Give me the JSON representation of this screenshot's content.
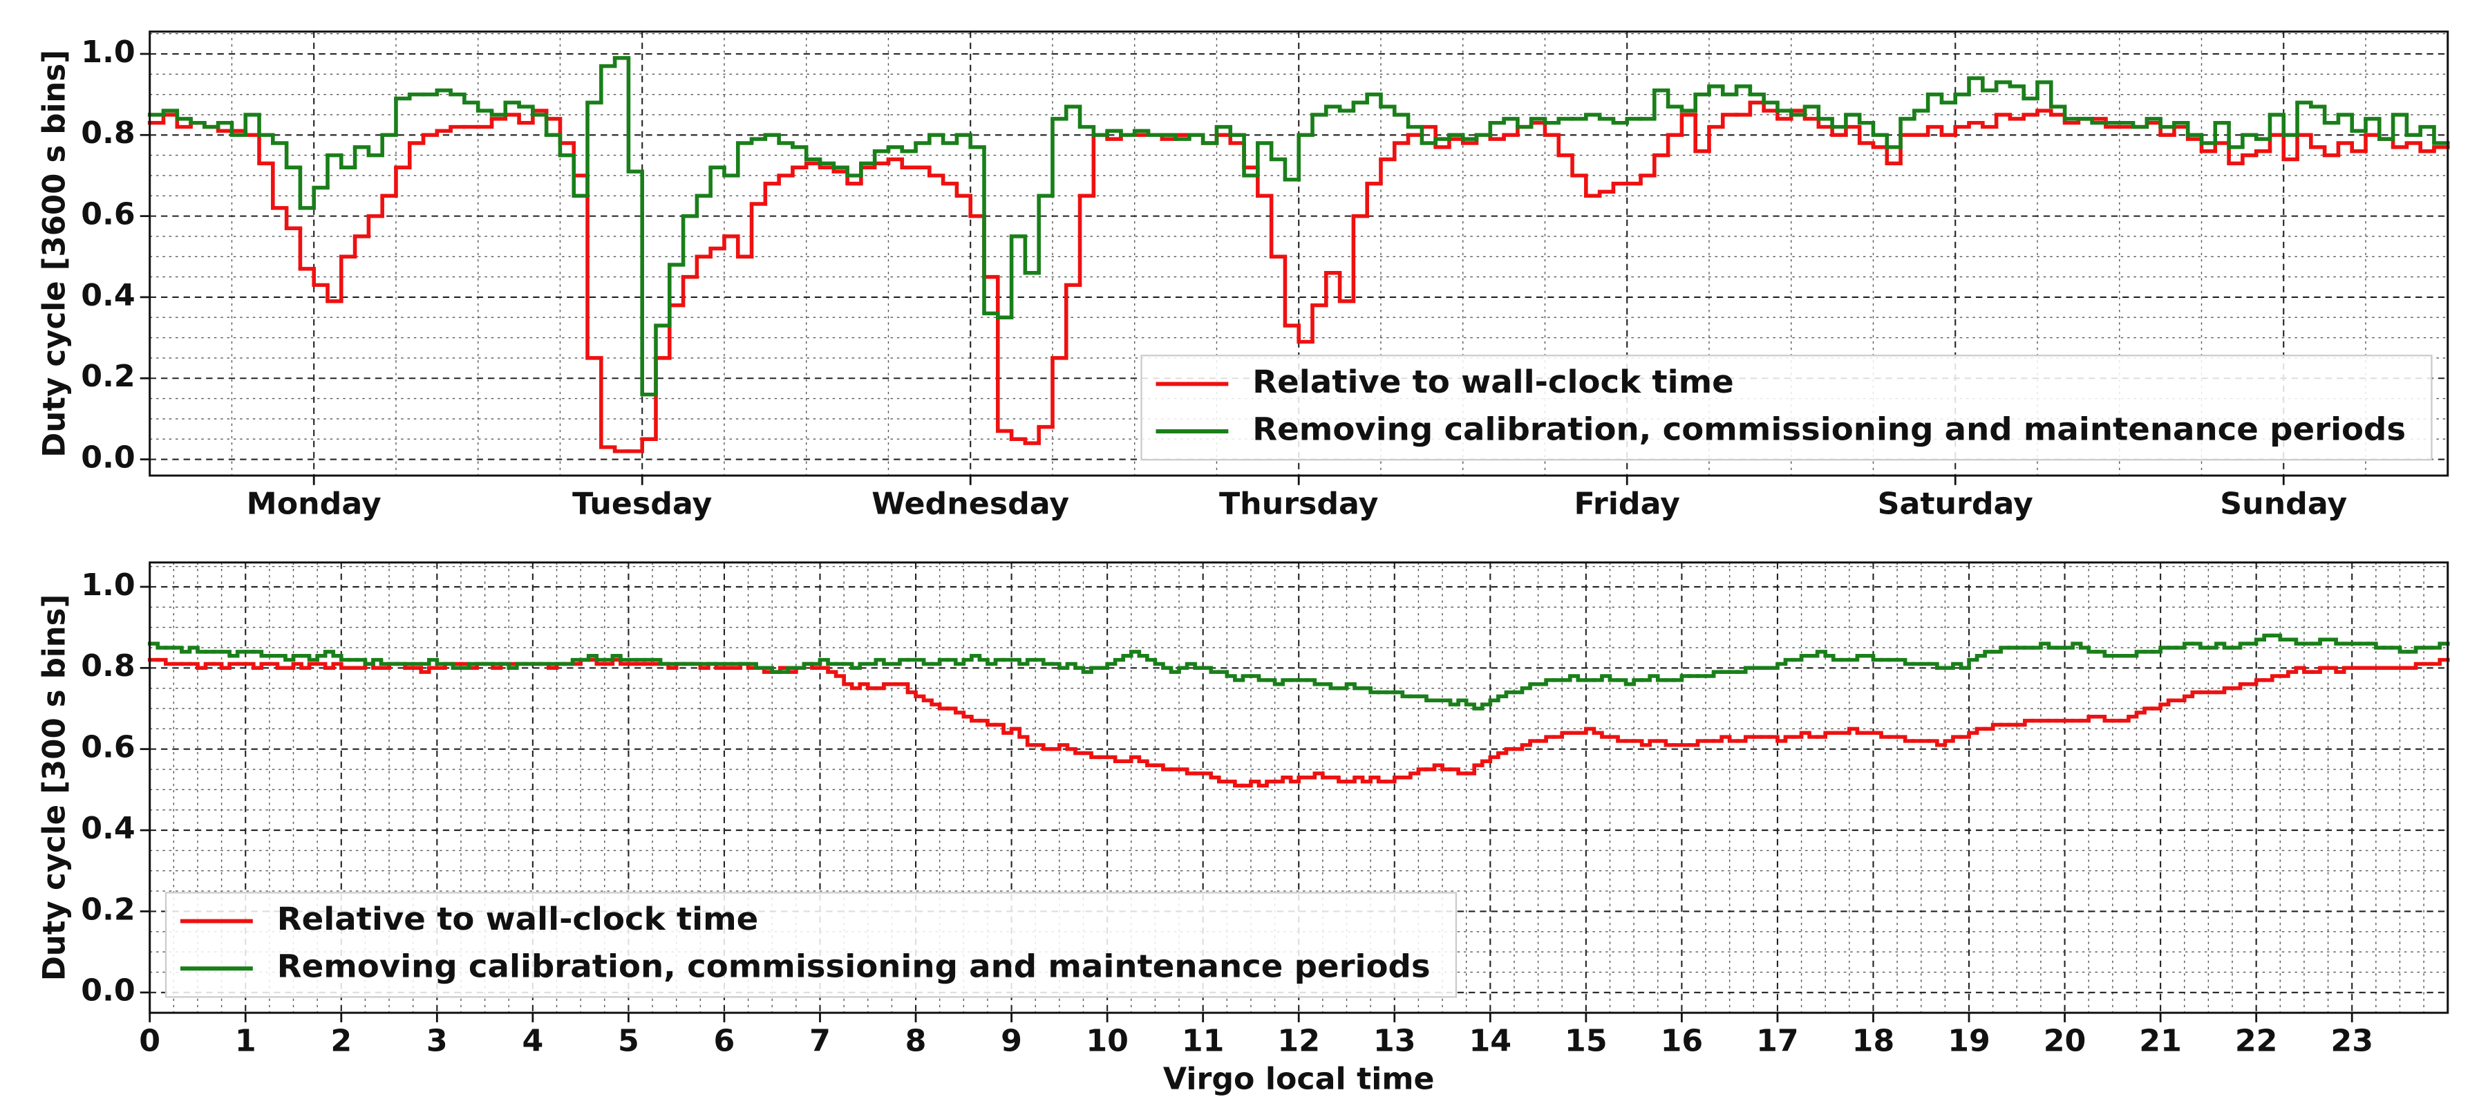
{
  "chart_data": [
    {
      "type": "step",
      "ylabel": "Duty cycle [3600 s bins]",
      "xlim": [
        0,
        168
      ],
      "xticks": [
        {
          "value": 12,
          "label": "Monday"
        },
        {
          "value": 36,
          "label": "Tuesday"
        },
        {
          "value": 60,
          "label": "Wednesday"
        },
        {
          "value": 84,
          "label": "Thursday"
        },
        {
          "value": 108,
          "label": "Friday"
        },
        {
          "value": 132,
          "label": "Saturday"
        },
        {
          "value": 156,
          "label": "Sunday"
        }
      ],
      "ylim": [
        -0.04,
        1.055
      ],
      "yticks": [
        {
          "value": 0,
          "label": "0.0"
        },
        {
          "value": 0.2,
          "label": "0.2"
        },
        {
          "value": 0.4,
          "label": "0.4"
        },
        {
          "value": 0.6,
          "label": "0.6"
        },
        {
          "value": 0.8,
          "label": "0.8"
        },
        {
          "value": 1,
          "label": "1.0"
        }
      ],
      "grid": true,
      "legend": "lower right",
      "series": [
        {
          "name": "Relative to wall-clock time",
          "color": "#ee1111",
          "values": [
            0.83,
            0.85,
            0.82,
            0.83,
            0.82,
            0.81,
            0.81,
            0.8,
            0.73,
            0.62,
            0.57,
            0.47,
            0.43,
            0.39,
            0.5,
            0.55,
            0.6,
            0.65,
            0.72,
            0.78,
            0.8,
            0.81,
            0.82,
            0.82,
            0.82,
            0.84,
            0.85,
            0.83,
            0.86,
            0.84,
            0.78,
            0.7,
            0.25,
            0.03,
            0.02,
            0.02,
            0.05,
            0.25,
            0.38,
            0.45,
            0.5,
            0.52,
            0.55,
            0.5,
            0.63,
            0.68,
            0.7,
            0.72,
            0.73,
            0.72,
            0.71,
            0.68,
            0.72,
            0.73,
            0.74,
            0.72,
            0.72,
            0.7,
            0.68,
            0.65,
            0.6,
            0.45,
            0.07,
            0.05,
            0.04,
            0.08,
            0.25,
            0.43,
            0.65,
            0.8,
            0.79,
            0.8,
            0.8,
            0.8,
            0.79,
            0.8,
            0.8,
            0.78,
            0.8,
            0.78,
            0.72,
            0.65,
            0.5,
            0.33,
            0.29,
            0.38,
            0.46,
            0.39,
            0.6,
            0.68,
            0.74,
            0.78,
            0.8,
            0.82,
            0.77,
            0.79,
            0.78,
            0.8,
            0.79,
            0.8,
            0.82,
            0.83,
            0.8,
            0.75,
            0.7,
            0.65,
            0.66,
            0.68,
            0.68,
            0.7,
            0.75,
            0.8,
            0.85,
            0.76,
            0.82,
            0.85,
            0.85,
            0.88,
            0.86,
            0.84,
            0.86,
            0.84,
            0.82,
            0.8,
            0.82,
            0.78,
            0.77,
            0.73,
            0.8,
            0.8,
            0.82,
            0.8,
            0.82,
            0.83,
            0.82,
            0.85,
            0.84,
            0.85,
            0.86,
            0.85,
            0.83,
            0.84,
            0.84,
            0.82,
            0.82,
            0.82,
            0.83,
            0.8,
            0.82,
            0.79,
            0.76,
            0.78,
            0.73,
            0.75,
            0.76,
            0.8,
            0.74,
            0.8,
            0.77,
            0.75,
            0.78,
            0.76,
            0.8,
            0.79,
            0.77,
            0.78,
            0.76,
            0.77
          ]
        },
        {
          "name": "Removing calibration, commissioning and maintenance periods",
          "color": "#1a7f1a",
          "values": [
            0.85,
            0.86,
            0.84,
            0.83,
            0.82,
            0.83,
            0.8,
            0.85,
            0.8,
            0.78,
            0.72,
            0.62,
            0.67,
            0.75,
            0.72,
            0.77,
            0.75,
            0.8,
            0.89,
            0.9,
            0.9,
            0.91,
            0.9,
            0.88,
            0.86,
            0.85,
            0.88,
            0.87,
            0.85,
            0.8,
            0.75,
            0.65,
            0.88,
            0.97,
            0.99,
            0.71,
            0.16,
            0.33,
            0.48,
            0.6,
            0.65,
            0.72,
            0.7,
            0.78,
            0.79,
            0.8,
            0.78,
            0.77,
            0.74,
            0.73,
            0.72,
            0.7,
            0.73,
            0.76,
            0.77,
            0.76,
            0.78,
            0.8,
            0.78,
            0.8,
            0.77,
            0.36,
            0.35,
            0.55,
            0.46,
            0.65,
            0.84,
            0.87,
            0.82,
            0.8,
            0.81,
            0.8,
            0.81,
            0.8,
            0.8,
            0.79,
            0.8,
            0.78,
            0.82,
            0.8,
            0.7,
            0.78,
            0.74,
            0.69,
            0.8,
            0.85,
            0.87,
            0.86,
            0.88,
            0.9,
            0.87,
            0.85,
            0.82,
            0.78,
            0.79,
            0.8,
            0.79,
            0.8,
            0.83,
            0.84,
            0.82,
            0.84,
            0.83,
            0.84,
            0.84,
            0.85,
            0.84,
            0.83,
            0.84,
            0.84,
            0.91,
            0.87,
            0.86,
            0.9,
            0.92,
            0.9,
            0.92,
            0.9,
            0.88,
            0.86,
            0.85,
            0.87,
            0.84,
            0.82,
            0.85,
            0.83,
            0.8,
            0.77,
            0.84,
            0.86,
            0.9,
            0.88,
            0.9,
            0.94,
            0.91,
            0.93,
            0.92,
            0.89,
            0.93,
            0.87,
            0.84,
            0.84,
            0.83,
            0.83,
            0.83,
            0.82,
            0.84,
            0.82,
            0.83,
            0.8,
            0.78,
            0.83,
            0.77,
            0.8,
            0.79,
            0.85,
            0.8,
            0.88,
            0.87,
            0.83,
            0.85,
            0.81,
            0.84,
            0.79,
            0.85,
            0.8,
            0.82,
            0.78
          ]
        }
      ]
    },
    {
      "type": "step",
      "ylabel": "Duty cycle [300 s bins]",
      "xlabel": "Virgo local time",
      "xlim": [
        0,
        24
      ],
      "xticks": [
        0,
        1,
        2,
        3,
        4,
        5,
        6,
        7,
        8,
        9,
        10,
        11,
        12,
        13,
        14,
        15,
        16,
        17,
        18,
        19,
        20,
        21,
        22,
        23
      ],
      "ylim": [
        -0.05,
        1.06
      ],
      "yticks": [
        {
          "value": 0,
          "label": "0.0"
        },
        {
          "value": 0.2,
          "label": "0.2"
        },
        {
          "value": 0.4,
          "label": "0.4"
        },
        {
          "value": 0.6,
          "label": "0.6"
        },
        {
          "value": 0.8,
          "label": "0.8"
        },
        {
          "value": 1,
          "label": "1.0"
        }
      ],
      "grid": true,
      "legend": "lower left",
      "series": [
        {
          "name": "Relative to wall-clock time",
          "color": "#ee1111",
          "values": [
            0.82,
            0.82,
            0.81,
            0.81,
            0.81,
            0.81,
            0.8,
            0.81,
            0.81,
            0.8,
            0.81,
            0.81,
            0.81,
            0.8,
            0.81,
            0.81,
            0.8,
            0.8,
            0.81,
            0.8,
            0.81,
            0.81,
            0.8,
            0.81,
            0.8,
            0.8,
            0.8,
            0.81,
            0.8,
            0.8,
            0.81,
            0.81,
            0.8,
            0.8,
            0.79,
            0.8,
            0.8,
            0.81,
            0.81,
            0.81,
            0.8,
            0.81,
            0.81,
            0.8,
            0.81,
            0.81,
            0.81,
            0.81,
            0.81,
            0.81,
            0.8,
            0.81,
            0.81,
            0.81,
            0.82,
            0.82,
            0.81,
            0.81,
            0.82,
            0.81,
            0.81,
            0.81,
            0.81,
            0.81,
            0.81,
            0.8,
            0.81,
            0.81,
            0.81,
            0.8,
            0.81,
            0.8,
            0.8,
            0.8,
            0.81,
            0.8,
            0.8,
            0.79,
            0.79,
            0.8,
            0.79,
            0.8,
            0.81,
            0.8,
            0.8,
            0.79,
            0.78,
            0.76,
            0.75,
            0.76,
            0.75,
            0.75,
            0.76,
            0.76,
            0.76,
            0.74,
            0.73,
            0.72,
            0.71,
            0.7,
            0.7,
            0.69,
            0.68,
            0.67,
            0.67,
            0.66,
            0.66,
            0.64,
            0.65,
            0.63,
            0.61,
            0.61,
            0.6,
            0.6,
            0.61,
            0.6,
            0.59,
            0.59,
            0.58,
            0.58,
            0.58,
            0.57,
            0.57,
            0.58,
            0.57,
            0.56,
            0.56,
            0.55,
            0.55,
            0.55,
            0.54,
            0.54,
            0.54,
            0.53,
            0.52,
            0.52,
            0.51,
            0.51,
            0.52,
            0.51,
            0.52,
            0.52,
            0.53,
            0.52,
            0.53,
            0.53,
            0.54,
            0.53,
            0.53,
            0.52,
            0.52,
            0.53,
            0.52,
            0.53,
            0.52,
            0.52,
            0.53,
            0.53,
            0.54,
            0.55,
            0.55,
            0.56,
            0.55,
            0.55,
            0.54,
            0.54,
            0.56,
            0.57,
            0.58,
            0.59,
            0.6,
            0.6,
            0.61,
            0.62,
            0.62,
            0.63,
            0.63,
            0.64,
            0.64,
            0.64,
            0.65,
            0.64,
            0.63,
            0.63,
            0.62,
            0.62,
            0.62,
            0.61,
            0.62,
            0.62,
            0.61,
            0.61,
            0.61,
            0.61,
            0.62,
            0.62,
            0.62,
            0.63,
            0.62,
            0.62,
            0.63,
            0.63,
            0.63,
            0.63,
            0.62,
            0.63,
            0.63,
            0.64,
            0.63,
            0.63,
            0.64,
            0.64,
            0.64,
            0.65,
            0.64,
            0.64,
            0.64,
            0.63,
            0.63,
            0.63,
            0.62,
            0.62,
            0.62,
            0.62,
            0.61,
            0.62,
            0.63,
            0.63,
            0.64,
            0.65,
            0.65,
            0.66,
            0.66,
            0.66,
            0.66,
            0.67,
            0.67,
            0.67,
            0.67,
            0.67,
            0.67,
            0.67,
            0.67,
            0.68,
            0.68,
            0.67,
            0.67,
            0.67,
            0.68,
            0.69,
            0.7,
            0.7,
            0.71,
            0.72,
            0.72,
            0.73,
            0.74,
            0.74,
            0.74,
            0.74,
            0.75,
            0.75,
            0.76,
            0.76,
            0.77,
            0.77,
            0.78,
            0.78,
            0.79,
            0.8,
            0.79,
            0.79,
            0.8,
            0.8,
            0.79,
            0.8,
            0.8,
            0.8,
            0.8,
            0.8,
            0.8,
            0.8,
            0.8,
            0.8,
            0.81,
            0.81,
            0.81,
            0.82
          ]
        },
        {
          "name": "Removing calibration, commissioning and maintenance periods",
          "color": "#1a7f1a",
          "values": [
            0.86,
            0.85,
            0.85,
            0.85,
            0.84,
            0.85,
            0.84,
            0.84,
            0.84,
            0.84,
            0.83,
            0.84,
            0.84,
            0.84,
            0.83,
            0.83,
            0.83,
            0.82,
            0.83,
            0.83,
            0.82,
            0.83,
            0.84,
            0.83,
            0.82,
            0.82,
            0.82,
            0.81,
            0.82,
            0.81,
            0.81,
            0.81,
            0.81,
            0.81,
            0.81,
            0.82,
            0.81,
            0.81,
            0.8,
            0.8,
            0.81,
            0.81,
            0.81,
            0.81,
            0.81,
            0.8,
            0.81,
            0.81,
            0.81,
            0.81,
            0.81,
            0.81,
            0.81,
            0.82,
            0.82,
            0.83,
            0.82,
            0.82,
            0.83,
            0.82,
            0.82,
            0.82,
            0.82,
            0.82,
            0.81,
            0.81,
            0.81,
            0.81,
            0.81,
            0.81,
            0.81,
            0.81,
            0.81,
            0.81,
            0.81,
            0.81,
            0.8,
            0.8,
            0.79,
            0.79,
            0.8,
            0.8,
            0.81,
            0.81,
            0.82,
            0.81,
            0.81,
            0.81,
            0.8,
            0.81,
            0.81,
            0.82,
            0.81,
            0.81,
            0.82,
            0.82,
            0.82,
            0.81,
            0.81,
            0.82,
            0.82,
            0.81,
            0.82,
            0.83,
            0.82,
            0.81,
            0.82,
            0.82,
            0.82,
            0.81,
            0.82,
            0.82,
            0.81,
            0.81,
            0.8,
            0.81,
            0.8,
            0.79,
            0.8,
            0.8,
            0.81,
            0.82,
            0.83,
            0.84,
            0.83,
            0.82,
            0.81,
            0.8,
            0.79,
            0.8,
            0.81,
            0.8,
            0.8,
            0.79,
            0.79,
            0.78,
            0.77,
            0.78,
            0.78,
            0.77,
            0.77,
            0.76,
            0.77,
            0.77,
            0.77,
            0.77,
            0.76,
            0.76,
            0.75,
            0.75,
            0.76,
            0.75,
            0.75,
            0.74,
            0.74,
            0.74,
            0.74,
            0.73,
            0.73,
            0.73,
            0.72,
            0.72,
            0.72,
            0.71,
            0.72,
            0.71,
            0.7,
            0.71,
            0.72,
            0.73,
            0.74,
            0.74,
            0.75,
            0.76,
            0.76,
            0.77,
            0.77,
            0.77,
            0.78,
            0.77,
            0.77,
            0.77,
            0.78,
            0.77,
            0.77,
            0.76,
            0.77,
            0.77,
            0.78,
            0.77,
            0.77,
            0.77,
            0.78,
            0.78,
            0.78,
            0.78,
            0.79,
            0.79,
            0.79,
            0.79,
            0.8,
            0.8,
            0.8,
            0.8,
            0.81,
            0.82,
            0.82,
            0.83,
            0.83,
            0.84,
            0.83,
            0.82,
            0.82,
            0.82,
            0.83,
            0.83,
            0.82,
            0.82,
            0.82,
            0.82,
            0.81,
            0.81,
            0.81,
            0.81,
            0.8,
            0.8,
            0.81,
            0.8,
            0.82,
            0.83,
            0.84,
            0.84,
            0.85,
            0.85,
            0.85,
            0.85,
            0.85,
            0.86,
            0.85,
            0.85,
            0.85,
            0.86,
            0.85,
            0.84,
            0.84,
            0.83,
            0.83,
            0.83,
            0.83,
            0.84,
            0.84,
            0.84,
            0.85,
            0.85,
            0.85,
            0.86,
            0.86,
            0.85,
            0.85,
            0.86,
            0.85,
            0.85,
            0.86,
            0.86,
            0.87,
            0.88,
            0.88,
            0.87,
            0.87,
            0.86,
            0.86,
            0.86,
            0.87,
            0.87,
            0.86,
            0.86,
            0.86,
            0.86,
            0.86,
            0.85,
            0.85,
            0.85,
            0.84,
            0.84,
            0.85,
            0.85,
            0.85,
            0.86
          ]
        }
      ]
    }
  ]
}
